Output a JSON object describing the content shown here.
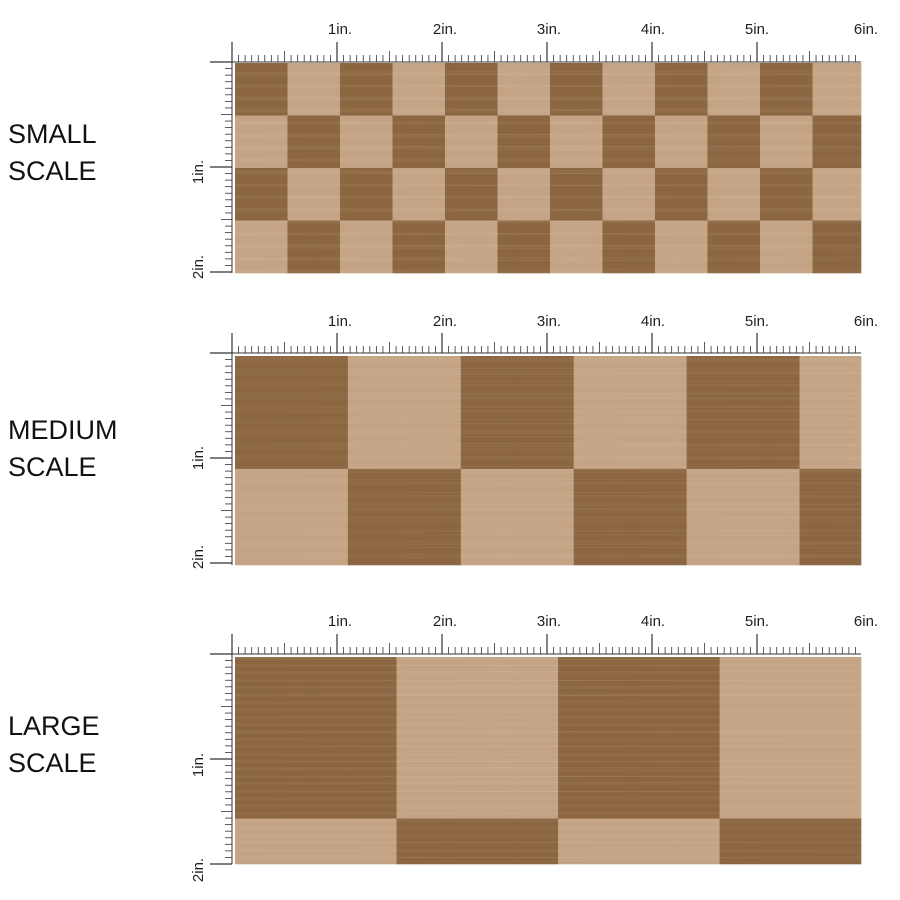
{
  "sections": [
    {
      "id": "small",
      "label_line1": "SMALL",
      "label_line2": "SCALE",
      "squares_per_inch": 2,
      "phase": 0
    },
    {
      "id": "medium",
      "label_line1": "MEDIUM",
      "label_line2": "SCALE",
      "squares_per_inch": 0.93,
      "phase": 0
    },
    {
      "id": "large",
      "label_line1": "LARGE",
      "label_line2": "SCALE",
      "squares_per_inch": 0.65,
      "phase": 0
    }
  ],
  "ruler": {
    "horizontal_labels": [
      "1in.",
      "2in.",
      "3in.",
      "4in.",
      "5in.",
      "6in."
    ],
    "vertical_labels": [
      "1in.",
      "2in."
    ]
  },
  "colors": {
    "dark_square": "#8c6640",
    "light_square": "#c4a484",
    "ruler_line": "#333333",
    "label_text": "#111111"
  }
}
